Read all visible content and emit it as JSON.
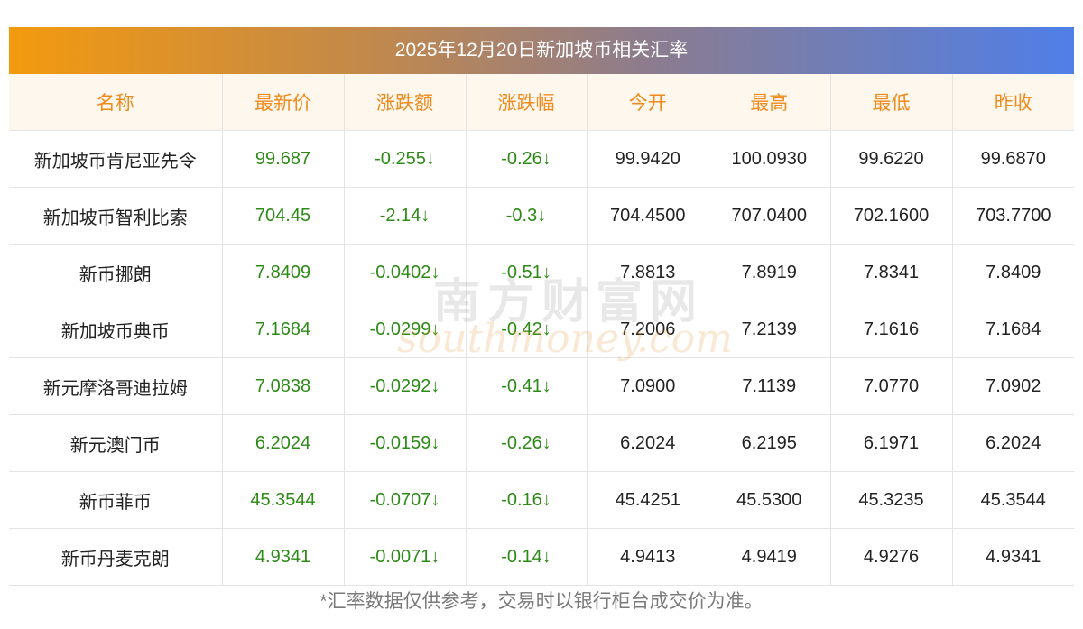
{
  "title": "2025年12月20日新加坡币相关汇率",
  "columns": [
    "名称",
    "最新价",
    "涨跌额",
    "涨跌幅",
    "今开",
    "最高",
    "最低",
    "昨收"
  ],
  "down_arrow": "↓",
  "rows": [
    {
      "name": "新加坡币肯尼亚先令",
      "latest": "99.687",
      "change": "-0.255",
      "pct": "-0.26",
      "open": "99.9420",
      "high": "100.0930",
      "low": "99.6220",
      "prev": "99.6870"
    },
    {
      "name": "新加坡币智利比索",
      "latest": "704.45",
      "change": "-2.14",
      "pct": "-0.3",
      "open": "704.4500",
      "high": "707.0400",
      "low": "702.1600",
      "prev": "703.7700"
    },
    {
      "name": "新币挪朗",
      "latest": "7.8409",
      "change": "-0.0402",
      "pct": "-0.51",
      "open": "7.8813",
      "high": "7.8919",
      "low": "7.8341",
      "prev": "7.8409"
    },
    {
      "name": "新加坡币典币",
      "latest": "7.1684",
      "change": "-0.0299",
      "pct": "-0.42",
      "open": "7.2006",
      "high": "7.2139",
      "low": "7.1616",
      "prev": "7.1684"
    },
    {
      "name": "新元摩洛哥迪拉姆",
      "latest": "7.0838",
      "change": "-0.0292",
      "pct": "-0.41",
      "open": "7.0900",
      "high": "7.1139",
      "low": "7.0770",
      "prev": "7.0902"
    },
    {
      "name": "新元澳门币",
      "latest": "6.2024",
      "change": "-0.0159",
      "pct": "-0.26",
      "open": "6.2024",
      "high": "6.2195",
      "low": "6.1971",
      "prev": "6.2024"
    },
    {
      "name": "新币菲币",
      "latest": "45.3544",
      "change": "-0.0707",
      "pct": "-0.16",
      "open": "45.4251",
      "high": "45.5300",
      "low": "45.3235",
      "prev": "45.3544"
    },
    {
      "name": "新币丹麦克朗",
      "latest": "4.9341",
      "change": "-0.0071",
      "pct": "-0.14",
      "open": "4.9413",
      "high": "4.9419",
      "low": "4.9276",
      "prev": "4.9341"
    }
  ],
  "footnote": "*汇率数据仅供参考，交易时以银行柜台成交价为准。",
  "watermark": {
    "cn": "南方财富网",
    "en": "southmoney.com"
  },
  "colors": {
    "header_text": "#f08a1c",
    "down_green": "#2c8a16",
    "header_bg": "#fdf7ee"
  }
}
